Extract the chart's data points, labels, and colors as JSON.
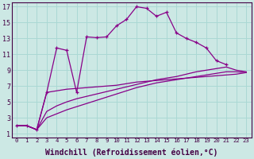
{
  "background_color": "#cce8e4",
  "grid_color": "#aad8d4",
  "line_color": "#880088",
  "xlabel": "Windchill (Refroidissement éolien,°C)",
  "xlabel_fontsize": 7.0,
  "ylabel_ticks": [
    1,
    3,
    5,
    7,
    9,
    11,
    13,
    15,
    17
  ],
  "xtick_labels": [
    "0",
    "1",
    "2",
    "3",
    "4",
    "5",
    "6",
    "7",
    "8",
    "9",
    "10",
    "11",
    "12",
    "13",
    "14",
    "15",
    "16",
    "17",
    "18",
    "19",
    "20",
    "21",
    "22",
    "23"
  ],
  "xlim": [
    -0.5,
    23.5
  ],
  "ylim": [
    0.5,
    17.5
  ],
  "curve_x": [
    0,
    1,
    2,
    3,
    4,
    5,
    6,
    7,
    8,
    9,
    10,
    11,
    12,
    13,
    14,
    15,
    16,
    17,
    18,
    19,
    20,
    21
  ],
  "curve_y": [
    2.0,
    2.0,
    1.5,
    6.2,
    11.8,
    11.5,
    6.2,
    13.2,
    13.1,
    13.2,
    14.6,
    15.4,
    17.0,
    16.8,
    15.8,
    16.3,
    13.7,
    13.0,
    12.5,
    11.8,
    10.2,
    9.7
  ],
  "line1_x": [
    0,
    1,
    2,
    3,
    4,
    5,
    6,
    7,
    8,
    9,
    10,
    11,
    12,
    13,
    14,
    15,
    16,
    17,
    18,
    19,
    20,
    21,
    22,
    23
  ],
  "line1_y": [
    2.0,
    2.0,
    1.5,
    3.0,
    3.5,
    4.0,
    4.4,
    4.8,
    5.2,
    5.6,
    6.0,
    6.4,
    6.8,
    7.1,
    7.4,
    7.6,
    7.8,
    8.0,
    8.2,
    8.4,
    8.6,
    8.8,
    8.8,
    8.7
  ],
  "line2_x": [
    0,
    1,
    2,
    3,
    4,
    5,
    6,
    7,
    8,
    9,
    10,
    11,
    12,
    13,
    14,
    15,
    16,
    17,
    18,
    19,
    20,
    21,
    22,
    23
  ],
  "line2_y": [
    2.0,
    2.0,
    1.5,
    6.2,
    6.4,
    6.6,
    6.7,
    6.8,
    6.9,
    7.0,
    7.1,
    7.3,
    7.5,
    7.6,
    7.7,
    7.8,
    7.9,
    8.0,
    8.1,
    8.2,
    8.3,
    8.4,
    8.5,
    8.7
  ],
  "line3_x": [
    0,
    1,
    2,
    3,
    4,
    5,
    6,
    7,
    8,
    9,
    10,
    11,
    12,
    13,
    14,
    15,
    16,
    17,
    18,
    19,
    20,
    21,
    22,
    23
  ],
  "line3_y": [
    2.0,
    2.0,
    1.5,
    3.8,
    4.5,
    5.0,
    5.4,
    5.7,
    6.0,
    6.3,
    6.6,
    6.9,
    7.2,
    7.5,
    7.8,
    8.0,
    8.2,
    8.5,
    8.8,
    9.0,
    9.2,
    9.4,
    9.0,
    8.8
  ]
}
